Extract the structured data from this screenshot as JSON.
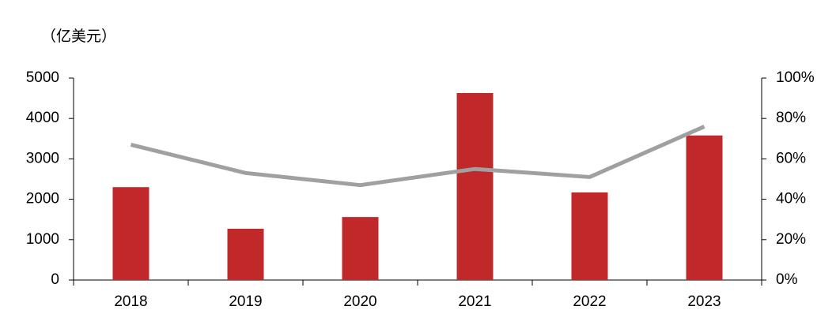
{
  "chart_data": {
    "type": "bar_line",
    "y_label": "（亿美元）",
    "categories": [
      "2018",
      "2019",
      "2020",
      "2021",
      "2022",
      "2023"
    ],
    "series": [
      {
        "type": "bar",
        "color": "#c0282a",
        "values": [
          2300,
          1270,
          1560,
          4630,
          2170,
          3580
        ]
      },
      {
        "type": "line",
        "axis": "y2",
        "color": "#a0a0a0",
        "values": [
          67,
          53,
          47,
          55,
          51,
          76
        ]
      }
    ],
    "ylim": [
      0,
      5000
    ],
    "yticks": [
      0,
      1000,
      2000,
      3000,
      4000,
      5000
    ],
    "y2lim": [
      0,
      100
    ],
    "y2ticks": [
      {
        "value": 0,
        "label": "0%"
      },
      {
        "value": 20,
        "label": "20%"
      },
      {
        "value": 40,
        "label": "40%"
      },
      {
        "value": 60,
        "label": "60%"
      },
      {
        "value": 80,
        "label": "80%"
      },
      {
        "value": 100,
        "label": "100%"
      }
    ],
    "grid": false
  }
}
